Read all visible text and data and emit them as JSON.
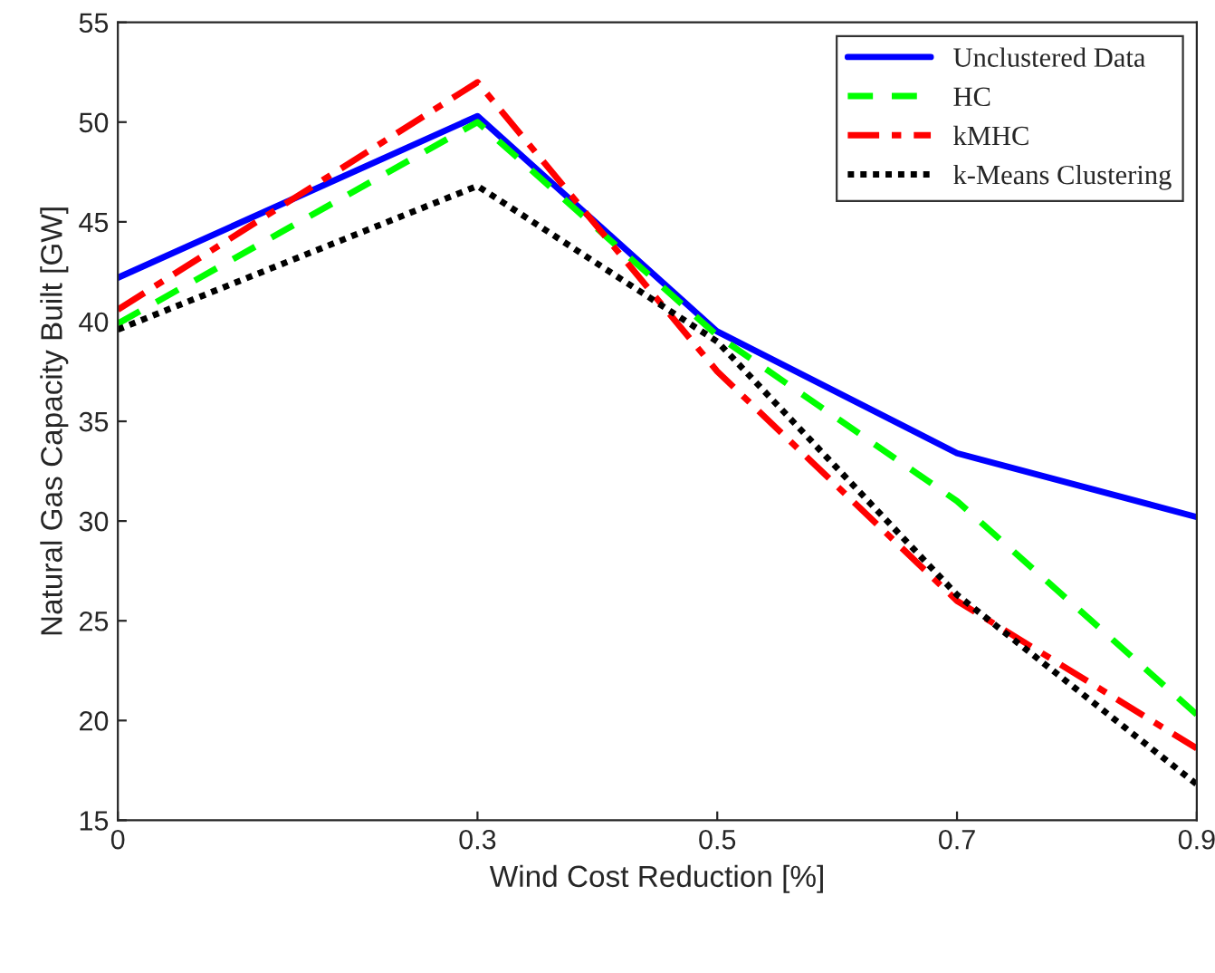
{
  "chart_data": {
    "type": "line",
    "xlabel": "Wind Cost Reduction [%]",
    "ylabel": "Natural Gas Capacity Built [GW]",
    "x": [
      0,
      0.3,
      0.5,
      0.7,
      0.9
    ],
    "xlim": [
      0,
      0.9
    ],
    "xticks": [
      0,
      0.3,
      0.5,
      0.7,
      0.9
    ],
    "ylim": [
      15,
      55
    ],
    "yticks": [
      15,
      20,
      25,
      30,
      35,
      40,
      45,
      50,
      55
    ],
    "grid": false,
    "legend": "top right",
    "marker": "none",
    "series": [
      {
        "name": "Unclustered Data",
        "color": "#0000ff",
        "line_style": "solid",
        "values": [
          42.2,
          50.3,
          39.5,
          33.4,
          30.2
        ]
      },
      {
        "name": "HC",
        "color": "#00ff00",
        "line_style": "dashed",
        "values": [
          39.9,
          50.0,
          39.3,
          31.0,
          20.3
        ]
      },
      {
        "name": "kMHC",
        "color": "#ff0000",
        "line_style": "dashdot",
        "values": [
          40.6,
          52.0,
          37.5,
          26.0,
          18.6
        ]
      },
      {
        "name": "k-Means Clustering",
        "color": "#000000",
        "line_style": "dotted",
        "values": [
          39.6,
          46.8,
          39.0,
          26.3,
          16.8
        ]
      }
    ]
  }
}
